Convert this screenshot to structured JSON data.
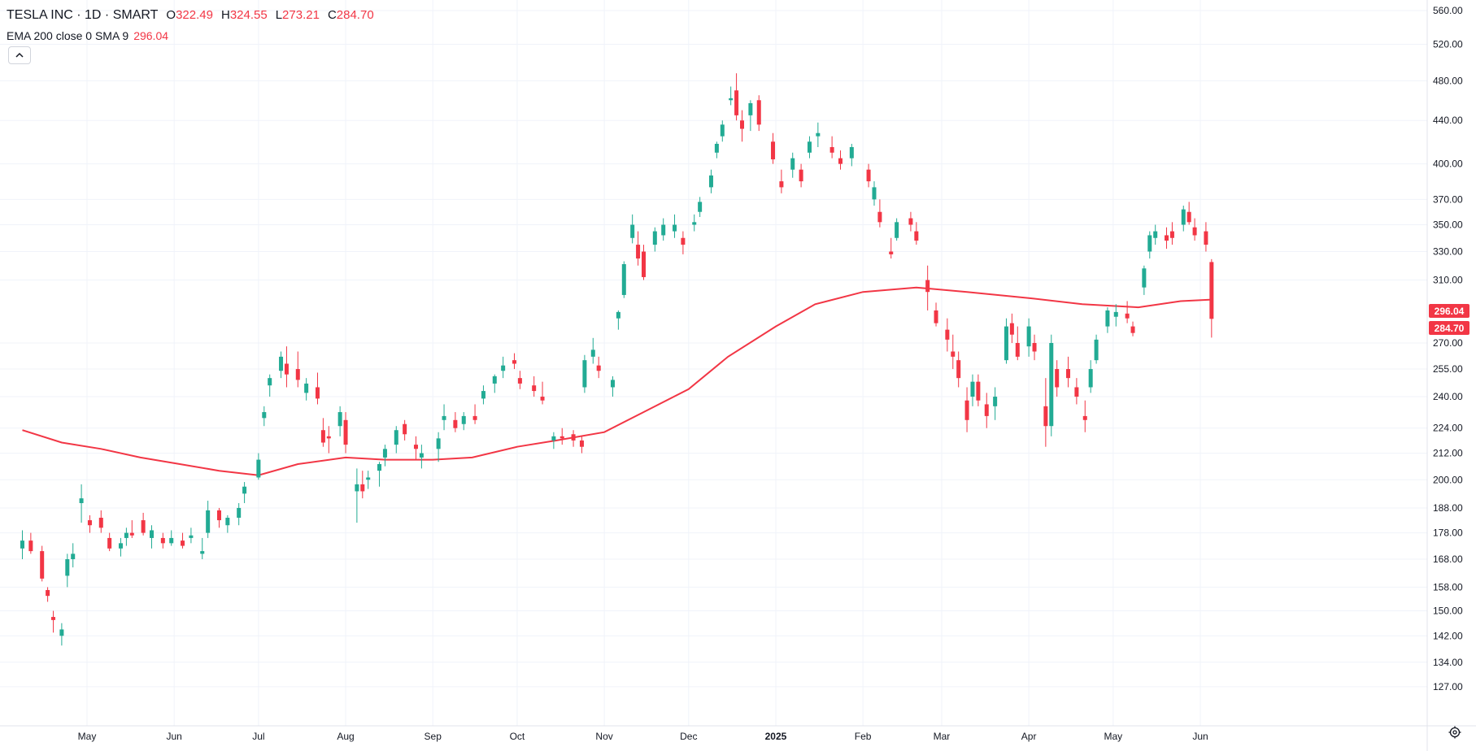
{
  "legend": {
    "symbol": "TESLA INC · 1D · SMART",
    "open_label": "O",
    "open": "322.49",
    "high_label": "H",
    "high": "324.55",
    "low_label": "L",
    "low": "273.21",
    "close_label": "C",
    "close": "284.70",
    "indicator": "EMA 200 close 0 SMA 9",
    "indicator_value": "296.04",
    "collapse_icon": "chevron-up-icon"
  },
  "colors": {
    "up": "#26a69a",
    "up_body": "#22ab94",
    "down": "#f23645",
    "ema": "#f23645",
    "grid": "#f0f3fa",
    "axis_text": "#131722"
  },
  "chart_data": {
    "type": "candlestick",
    "title": "TESLA INC · 1D · SMART",
    "x_ticks": [
      "May",
      "Jun",
      "Jul",
      "Aug",
      "Sep",
      "Oct",
      "Nov",
      "Dec",
      "2025",
      "Feb",
      "Mar",
      "Apr",
      "May",
      "Jun"
    ],
    "y_ticks": [
      127.0,
      134.0,
      142.0,
      150.0,
      158.0,
      168.0,
      178.0,
      188.0,
      200.0,
      212.0,
      224.0,
      240.0,
      255.0,
      270.0,
      310.0,
      330.0,
      350.0,
      370.0,
      400.0,
      440.0,
      480.0,
      520.0,
      560.0
    ],
    "y_scale": "log",
    "ylim": [
      121,
      560
    ],
    "grid": true,
    "last_ohlc": {
      "open": 322.49,
      "high": 324.55,
      "low": 273.21,
      "close": 284.7
    },
    "price_badges": [
      {
        "label": "296.04",
        "value": 296.04,
        "color": "#f23645"
      },
      {
        "label": "284.70",
        "value": 284.7,
        "color": "#f23645"
      }
    ],
    "ema": {
      "name": "EMA 200 close 0 SMA 9",
      "last": 296.04,
      "points": [
        [
          "2024-04-08",
          223
        ],
        [
          "2024-04-22",
          217
        ],
        [
          "2024-05-06",
          214
        ],
        [
          "2024-05-20",
          210
        ],
        [
          "2024-06-03",
          207
        ],
        [
          "2024-06-17",
          204
        ],
        [
          "2024-07-01",
          202
        ],
        [
          "2024-07-15",
          207
        ],
        [
          "2024-08-01",
          210
        ],
        [
          "2024-08-15",
          209
        ],
        [
          "2024-09-01",
          209
        ],
        [
          "2024-09-15",
          210
        ],
        [
          "2024-10-01",
          215
        ],
        [
          "2024-10-15",
          218
        ],
        [
          "2024-11-01",
          222
        ],
        [
          "2024-11-15",
          232
        ],
        [
          "2024-12-01",
          244
        ],
        [
          "2024-12-15",
          262
        ],
        [
          "2025-01-01",
          280
        ],
        [
          "2025-01-15",
          294
        ],
        [
          "2025-02-01",
          302
        ],
        [
          "2025-02-20",
          305
        ],
        [
          "2025-03-10",
          302
        ],
        [
          "2025-04-01",
          298
        ],
        [
          "2025-04-20",
          294
        ],
        [
          "2025-05-10",
          292
        ],
        [
          "2025-05-25",
          296
        ],
        [
          "2025-06-05",
          297
        ]
      ]
    },
    "candles": [
      [
        "2024-04-08",
        172,
        179,
        168,
        175
      ],
      [
        "2024-04-11",
        175,
        178,
        170,
        171
      ],
      [
        "2024-04-15",
        171,
        173,
        160,
        161
      ],
      [
        "2024-04-17",
        157,
        158,
        153,
        155
      ],
      [
        "2024-04-19",
        148,
        150,
        143,
        147
      ],
      [
        "2024-04-22",
        142,
        146,
        139,
        144
      ],
      [
        "2024-04-24",
        162,
        170,
        158,
        168
      ],
      [
        "2024-04-26",
        168,
        174,
        165,
        170
      ],
      [
        "2024-04-29",
        190,
        198,
        182,
        192
      ],
      [
        "2024-05-02",
        183,
        185,
        178,
        181
      ],
      [
        "2024-05-06",
        184,
        187,
        178,
        180
      ],
      [
        "2024-05-09",
        176,
        178,
        171,
        172
      ],
      [
        "2024-05-13",
        172,
        176,
        169,
        174
      ],
      [
        "2024-05-15",
        176,
        180,
        173,
        178
      ],
      [
        "2024-05-17",
        178,
        183,
        176,
        177
      ],
      [
        "2024-05-21",
        183,
        186,
        177,
        178
      ],
      [
        "2024-05-24",
        176,
        181,
        172,
        179
      ],
      [
        "2024-05-28",
        176,
        178,
        172,
        174
      ],
      [
        "2024-05-31",
        174,
        179,
        173,
        176
      ],
      [
        "2024-06-04",
        175,
        178,
        172,
        173
      ],
      [
        "2024-06-07",
        176,
        180,
        174,
        177
      ],
      [
        "2024-06-11",
        170,
        176,
        168,
        171
      ],
      [
        "2024-06-13",
        178,
        191,
        176,
        187
      ],
      [
        "2024-06-17",
        187,
        188,
        180,
        183
      ],
      [
        "2024-06-20",
        181,
        185,
        178,
        184
      ],
      [
        "2024-06-24",
        184,
        190,
        181,
        188
      ],
      [
        "2024-06-26",
        194,
        199,
        190,
        197
      ],
      [
        "2024-07-01",
        201,
        212,
        200,
        209
      ],
      [
        "2024-07-03",
        229,
        235,
        225,
        232
      ],
      [
        "2024-07-05",
        246,
        252,
        240,
        250
      ],
      [
        "2024-07-09",
        254,
        265,
        250,
        262
      ],
      [
        "2024-07-11",
        258,
        268,
        245,
        252
      ],
      [
        "2024-07-15",
        255,
        265,
        245,
        249
      ],
      [
        "2024-07-18",
        242,
        250,
        238,
        247
      ],
      [
        "2024-07-22",
        245,
        253,
        236,
        239
      ],
      [
        "2024-07-24",
        223,
        229,
        215,
        217
      ],
      [
        "2024-07-26",
        220,
        225,
        212,
        219
      ],
      [
        "2024-07-30",
        225,
        235,
        220,
        232
      ],
      [
        "2024-08-01",
        228,
        232,
        212,
        216
      ],
      [
        "2024-08-05",
        195,
        205,
        182,
        198
      ],
      [
        "2024-08-07",
        198,
        204,
        192,
        195
      ],
      [
        "2024-08-09",
        200,
        204,
        196,
        201
      ],
      [
        "2024-08-13",
        204,
        208,
        197,
        207
      ],
      [
        "2024-08-15",
        210,
        216,
        206,
        214
      ],
      [
        "2024-08-19",
        216,
        225,
        212,
        223
      ],
      [
        "2024-08-22",
        226,
        228,
        218,
        221
      ],
      [
        "2024-08-26",
        216,
        220,
        209,
        214
      ],
      [
        "2024-08-28",
        210,
        216,
        205,
        212
      ],
      [
        "2024-09-03",
        214,
        222,
        208,
        219
      ],
      [
        "2024-09-05",
        228,
        236,
        223,
        230
      ],
      [
        "2024-09-09",
        228,
        232,
        222,
        224
      ],
      [
        "2024-09-12",
        226,
        232,
        223,
        230
      ],
      [
        "2024-09-16",
        230,
        236,
        226,
        228
      ],
      [
        "2024-09-19",
        239,
        246,
        236,
        243
      ],
      [
        "2024-09-23",
        247,
        252,
        242,
        251
      ],
      [
        "2024-09-26",
        254,
        262,
        250,
        257
      ],
      [
        "2024-09-30",
        260,
        264,
        255,
        258
      ],
      [
        "2024-10-02",
        250,
        254,
        244,
        247
      ],
      [
        "2024-10-07",
        246,
        251,
        240,
        243
      ],
      [
        "2024-10-10",
        240,
        248,
        236,
        238
      ],
      [
        "2024-10-14",
        218,
        222,
        214,
        220
      ],
      [
        "2024-10-17",
        220,
        224,
        216,
        219
      ],
      [
        "2024-10-21",
        221,
        223,
        215,
        218
      ],
      [
        "2024-10-24",
        218,
        220,
        212,
        215
      ],
      [
        "2024-10-25",
        245,
        263,
        242,
        260
      ],
      [
        "2024-10-28",
        262,
        273,
        258,
        266
      ],
      [
        "2024-10-30",
        257,
        262,
        250,
        254
      ],
      [
        "2024-11-04",
        245,
        251,
        240,
        249
      ],
      [
        "2024-11-06",
        285,
        290,
        278,
        289
      ],
      [
        "2024-11-08",
        300,
        323,
        298,
        321
      ],
      [
        "2024-11-11",
        340,
        358,
        336,
        350
      ],
      [
        "2024-11-13",
        335,
        345,
        320,
        325
      ],
      [
        "2024-11-15",
        330,
        335,
        310,
        312
      ],
      [
        "2024-11-19",
        335,
        348,
        330,
        345
      ],
      [
        "2024-11-22",
        342,
        355,
        338,
        350
      ],
      [
        "2024-11-26",
        345,
        358,
        340,
        350
      ],
      [
        "2024-11-29",
        340,
        345,
        328,
        335
      ],
      [
        "2024-12-03",
        350,
        358,
        345,
        352
      ],
      [
        "2024-12-05",
        360,
        372,
        356,
        368
      ],
      [
        "2024-12-09",
        380,
        395,
        375,
        390
      ],
      [
        "2024-12-11",
        410,
        420,
        405,
        418
      ],
      [
        "2024-12-13",
        425,
        440,
        420,
        436
      ],
      [
        "2024-12-16",
        460,
        474,
        455,
        462
      ],
      [
        "2024-12-18",
        470,
        488,
        440,
        445
      ],
      [
        "2024-12-20",
        440,
        450,
        420,
        432
      ],
      [
        "2024-12-23",
        445,
        460,
        430,
        457
      ],
      [
        "2024-12-26",
        460,
        465,
        430,
        436
      ],
      [
        "2024-12-31",
        420,
        428,
        400,
        404
      ],
      [
        "2025-01-03",
        385,
        395,
        375,
        380
      ],
      [
        "2025-01-07",
        395,
        410,
        388,
        405
      ],
      [
        "2025-01-10",
        395,
        400,
        380,
        385
      ],
      [
        "2025-01-13",
        410,
        425,
        405,
        420
      ],
      [
        "2025-01-16",
        425,
        438,
        415,
        428
      ],
      [
        "2025-01-21",
        415,
        425,
        405,
        410
      ],
      [
        "2025-01-24",
        405,
        412,
        395,
        400
      ],
      [
        "2025-01-28",
        405,
        418,
        398,
        415
      ],
      [
        "2025-02-03",
        395,
        400,
        380,
        385
      ],
      [
        "2025-02-05",
        370,
        385,
        365,
        380
      ],
      [
        "2025-02-07",
        360,
        370,
        348,
        352
      ],
      [
        "2025-02-11",
        330,
        340,
        325,
        328
      ],
      [
        "2025-02-13",
        340,
        355,
        338,
        352
      ],
      [
        "2025-02-18",
        355,
        360,
        345,
        350
      ],
      [
        "2025-02-20",
        345,
        352,
        335,
        338
      ],
      [
        "2025-02-24",
        310,
        320,
        290,
        302
      ],
      [
        "2025-02-27",
        290,
        295,
        280,
        282
      ],
      [
        "2025-03-03",
        278,
        285,
        265,
        272
      ],
      [
        "2025-03-05",
        265,
        275,
        255,
        262
      ],
      [
        "2025-03-07",
        260,
        265,
        245,
        250
      ],
      [
        "2025-03-10",
        238,
        245,
        222,
        228
      ],
      [
        "2025-03-12",
        240,
        252,
        235,
        248
      ],
      [
        "2025-03-14",
        248,
        252,
        235,
        238
      ],
      [
        "2025-03-17",
        236,
        242,
        224,
        230
      ],
      [
        "2025-03-20",
        235,
        245,
        228,
        240
      ],
      [
        "2025-03-24",
        260,
        285,
        258,
        280
      ],
      [
        "2025-03-26",
        282,
        288,
        270,
        275
      ],
      [
        "2025-03-28",
        270,
        280,
        260,
        262
      ],
      [
        "2025-04-01",
        268,
        285,
        262,
        280
      ],
      [
        "2025-04-03",
        270,
        275,
        260,
        265
      ],
      [
        "2025-04-07",
        235,
        250,
        215,
        225
      ],
      [
        "2025-04-09",
        225,
        275,
        220,
        270
      ],
      [
        "2025-04-11",
        255,
        260,
        240,
        245
      ],
      [
        "2025-04-15",
        255,
        262,
        245,
        250
      ],
      [
        "2025-04-18",
        245,
        250,
        236,
        240
      ],
      [
        "2025-04-21",
        230,
        238,
        222,
        228
      ],
      [
        "2025-04-23",
        245,
        260,
        242,
        255
      ],
      [
        "2025-04-25",
        260,
        275,
        258,
        272
      ],
      [
        "2025-04-29",
        280,
        292,
        276,
        290
      ],
      [
        "2025-05-02",
        286,
        294,
        280,
        289
      ],
      [
        "2025-05-06",
        288,
        296,
        282,
        285
      ],
      [
        "2025-05-08",
        280,
        283,
        274,
        276
      ],
      [
        "2025-05-12",
        305,
        320,
        300,
        318
      ],
      [
        "2025-05-14",
        330,
        345,
        325,
        342
      ],
      [
        "2025-05-16",
        340,
        350,
        335,
        345
      ],
      [
        "2025-05-20",
        342,
        348,
        332,
        338
      ],
      [
        "2025-05-22",
        345,
        352,
        335,
        340
      ],
      [
        "2025-05-26",
        350,
        365,
        345,
        362
      ],
      [
        "2025-05-28",
        360,
        368,
        350,
        352
      ],
      [
        "2025-05-30",
        348,
        355,
        338,
        342
      ],
      [
        "2025-06-03",
        345,
        352,
        330,
        335
      ],
      [
        "2025-06-05",
        322.49,
        324.55,
        273.21,
        284.7
      ]
    ]
  }
}
